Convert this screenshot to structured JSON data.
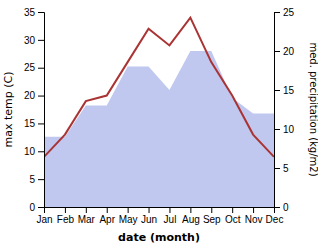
{
  "chart_data": {
    "type": "line",
    "xlabel": "date (month)",
    "ylabel": "max temp (C)",
    "y2label": "med. precipitation (kg/m2)",
    "categories": [
      "Jan",
      "Feb",
      "Mar",
      "Apr",
      "May",
      "Jun",
      "Jul",
      "Aug",
      "Sep",
      "Oct",
      "Nov",
      "Dec"
    ],
    "series": [
      {
        "type": "line",
        "color": "#aa3333",
        "values": [
          9,
          13,
          19,
          20,
          26,
          32,
          29,
          34,
          26,
          20,
          13,
          9
        ]
      },
      {
        "type": "area",
        "axis": "y2",
        "color": "#c0c8f0",
        "values": [
          9,
          9,
          13,
          13,
          18,
          18,
          15,
          20,
          20,
          14,
          12,
          12
        ]
      }
    ],
    "ylim": [
      0,
      35
    ],
    "yticks": [
      0,
      5,
      10,
      15,
      20,
      25,
      30,
      35
    ],
    "y2lim": [
      0,
      25
    ],
    "y2ticks": [
      0,
      5,
      10,
      15,
      20,
      25
    ],
    "grid": false
  }
}
